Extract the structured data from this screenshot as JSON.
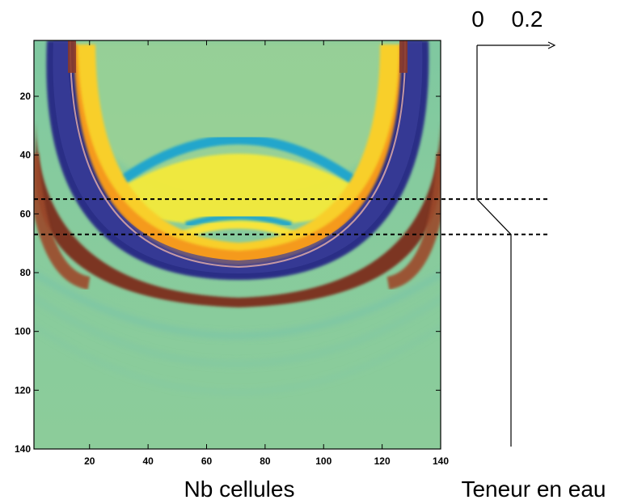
{
  "chart_data": [
    {
      "type": "heatmap",
      "title": "",
      "xlabel": "Nb cellules",
      "ylabel": "",
      "xlim": [
        1,
        140
      ],
      "ylim": [
        140,
        1
      ],
      "x_ticks": [
        "20",
        "40",
        "60",
        "80",
        "100",
        "120",
        "140"
      ],
      "y_ticks": [
        "20",
        "40",
        "60",
        "80",
        "100",
        "120",
        "140"
      ],
      "colormap": [
        "#1c2a78",
        "#3a4aa0",
        "#1fa3c8",
        "#8fcf9c",
        "#f6ec1f",
        "#f8a51b",
        "#8a3a2a",
        "#6b3020"
      ],
      "background_value_color": "#8fcc9c",
      "wavefront_center_x": 70,
      "dashed_levels_y": [
        55,
        67
      ]
    },
    {
      "type": "line",
      "title": "",
      "xlabel": "Teneur en eau",
      "x_ticks": [
        "0",
        "0.2"
      ],
      "profile": [
        {
          "depth": 1,
          "water": 0
        },
        {
          "depth": 55,
          "water": 0
        },
        {
          "depth": 67,
          "water": 0.2
        },
        {
          "depth": 140,
          "water": 0.2
        }
      ]
    }
  ]
}
